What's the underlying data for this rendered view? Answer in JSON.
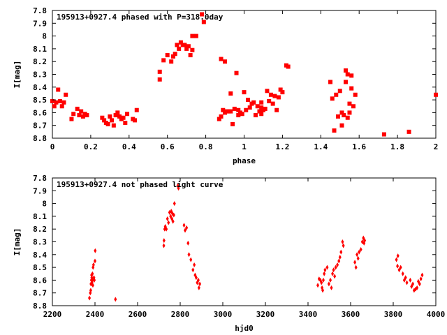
{
  "colors": {
    "points": "#ff0000",
    "axes": "#000000",
    "background": "#ffffff"
  },
  "chart_data": [
    {
      "type": "scatter",
      "title": "195913+0927.4 phased with P=318.0day",
      "xlabel": "phase",
      "ylabel": "I[mag]",
      "xlim": [
        0,
        2
      ],
      "ylim": [
        7.8,
        8.8
      ],
      "y_inverted": true,
      "grid": false,
      "marker": "filled-square",
      "x_ticks": [
        "0",
        "0.2",
        "0.4",
        "0.6",
        "0.8",
        "1",
        "1.2",
        "1.4",
        "1.6",
        "1.8",
        "2"
      ],
      "y_ticks": [
        "7.8",
        "7.9",
        "8",
        "8.1",
        "8.2",
        "8.3",
        "8.4",
        "8.5",
        "8.6",
        "8.7",
        "8.8"
      ],
      "points": [
        [
          0.0,
          8.51
        ],
        [
          0.01,
          8.55
        ],
        [
          0.02,
          8.52
        ],
        [
          0.03,
          8.42
        ],
        [
          0.04,
          8.51
        ],
        [
          0.05,
          8.55
        ],
        [
          0.06,
          8.52
        ],
        [
          0.07,
          8.46
        ],
        [
          0.1,
          8.65
        ],
        [
          0.11,
          8.61
        ],
        [
          0.13,
          8.57
        ],
        [
          0.14,
          8.62
        ],
        [
          0.15,
          8.59
        ],
        [
          0.16,
          8.63
        ],
        [
          0.17,
          8.61
        ],
        [
          0.18,
          8.62
        ],
        [
          0.26,
          8.64
        ],
        [
          0.27,
          8.66
        ],
        [
          0.28,
          8.68
        ],
        [
          0.29,
          8.69
        ],
        [
          0.3,
          8.63
        ],
        [
          0.31,
          8.66
        ],
        [
          0.32,
          8.7
        ],
        [
          0.33,
          8.62
        ],
        [
          0.34,
          8.6
        ],
        [
          0.35,
          8.63
        ],
        [
          0.36,
          8.65
        ],
        [
          0.37,
          8.64
        ],
        [
          0.38,
          8.68
        ],
        [
          0.39,
          8.61
        ],
        [
          0.42,
          8.65
        ],
        [
          0.43,
          8.66
        ],
        [
          0.44,
          8.58
        ],
        [
          0.56,
          8.28
        ],
        [
          0.56,
          8.34
        ],
        [
          0.58,
          8.19
        ],
        [
          0.6,
          8.15
        ],
        [
          0.62,
          8.2
        ],
        [
          0.63,
          8.16
        ],
        [
          0.64,
          8.14
        ],
        [
          0.65,
          8.07
        ],
        [
          0.66,
          8.1
        ],
        [
          0.67,
          8.05
        ],
        [
          0.68,
          8.07
        ],
        [
          0.69,
          8.07
        ],
        [
          0.7,
          8.1
        ],
        [
          0.71,
          8.08
        ],
        [
          0.72,
          8.15
        ],
        [
          0.73,
          8.11
        ],
        [
          0.73,
          8.0
        ],
        [
          0.75,
          8.0
        ],
        [
          0.78,
          7.83
        ],
        [
          0.79,
          7.89
        ],
        [
          0.87,
          8.65
        ],
        [
          0.88,
          8.18
        ],
        [
          0.88,
          8.63
        ],
        [
          0.89,
          8.58
        ],
        [
          0.9,
          8.2
        ],
        [
          0.9,
          8.6
        ],
        [
          0.91,
          8.59
        ],
        [
          0.92,
          8.59
        ],
        [
          0.93,
          8.59
        ],
        [
          0.93,
          8.45
        ],
        [
          0.94,
          8.69
        ],
        [
          0.95,
          8.57
        ],
        [
          0.96,
          8.29
        ],
        [
          0.97,
          8.58
        ],
        [
          0.97,
          8.62
        ],
        [
          0.98,
          8.6
        ],
        [
          0.99,
          8.61
        ],
        [
          1.0,
          8.44
        ],
        [
          1.01,
          8.58
        ],
        [
          1.02,
          8.5
        ],
        [
          1.03,
          8.56
        ],
        [
          1.04,
          8.53
        ],
        [
          1.05,
          8.52
        ],
        [
          1.06,
          8.62
        ],
        [
          1.07,
          8.55
        ],
        [
          1.08,
          8.59
        ],
        [
          1.09,
          8.56
        ],
        [
          1.09,
          8.52
        ],
        [
          1.09,
          8.61
        ],
        [
          1.1,
          8.58
        ],
        [
          1.11,
          8.57
        ],
        [
          1.12,
          8.43
        ],
        [
          1.13,
          8.51
        ],
        [
          1.14,
          8.46
        ],
        [
          1.15,
          8.53
        ],
        [
          1.16,
          8.47
        ],
        [
          1.17,
          8.58
        ],
        [
          1.18,
          8.48
        ],
        [
          1.19,
          8.42
        ],
        [
          1.2,
          8.44
        ],
        [
          1.22,
          8.23
        ],
        [
          1.23,
          8.24
        ],
        [
          1.45,
          8.36
        ],
        [
          1.46,
          8.49
        ],
        [
          1.47,
          8.74
        ],
        [
          1.48,
          8.46
        ],
        [
          1.49,
          8.63
        ],
        [
          1.5,
          8.43
        ],
        [
          1.51,
          8.6
        ],
        [
          1.51,
          8.7
        ],
        [
          1.52,
          8.62
        ],
        [
          1.53,
          8.36
        ],
        [
          1.53,
          8.27
        ],
        [
          1.54,
          8.64
        ],
        [
          1.54,
          8.3
        ],
        [
          1.55,
          8.6
        ],
        [
          1.55,
          8.53
        ],
        [
          1.56,
          8.31
        ],
        [
          1.56,
          8.41
        ],
        [
          1.57,
          8.55
        ],
        [
          1.58,
          8.46
        ],
        [
          1.73,
          8.77
        ],
        [
          1.86,
          8.75
        ],
        [
          2.0,
          8.46
        ]
      ]
    },
    {
      "type": "scatter",
      "title": "195913+0927.4 not phased light curve",
      "xlabel": "hjd0",
      "ylabel": "I[mag]",
      "xlim": [
        2200,
        4000
      ],
      "ylim": [
        7.8,
        8.8
      ],
      "y_inverted": true,
      "grid": false,
      "marker": "small-diamond",
      "x_ticks": [
        "2200",
        "2400",
        "2600",
        "2800",
        "3000",
        "3200",
        "3400",
        "3600",
        "3800",
        "4000"
      ],
      "y_ticks": [
        "7.8",
        "7.9",
        "8",
        "8.1",
        "8.2",
        "8.3",
        "8.4",
        "8.5",
        "8.6",
        "8.7",
        "8.8"
      ],
      "points": [
        [
          2374,
          8.74
        ],
        [
          2378,
          8.7
        ],
        [
          2380,
          8.68
        ],
        [
          2381,
          8.63
        ],
        [
          2383,
          8.6
        ],
        [
          2384,
          8.56
        ],
        [
          2385,
          8.58
        ],
        [
          2386,
          8.62
        ],
        [
          2388,
          8.55
        ],
        [
          2389,
          8.6
        ],
        [
          2390,
          8.64
        ],
        [
          2391,
          8.5
        ],
        [
          2393,
          8.48
        ],
        [
          2395,
          8.58
        ],
        [
          2397,
          8.6
        ],
        [
          2400,
          8.45
        ],
        [
          2401,
          8.37
        ],
        [
          2496,
          8.75
        ],
        [
          2723,
          8.33
        ],
        [
          2724,
          8.29
        ],
        [
          2727,
          8.2
        ],
        [
          2730,
          8.18
        ],
        [
          2735,
          8.2
        ],
        [
          2740,
          8.12
        ],
        [
          2745,
          8.15
        ],
        [
          2750,
          8.07
        ],
        [
          2755,
          8.1
        ],
        [
          2758,
          8.06
        ],
        [
          2761,
          8.12
        ],
        [
          2764,
          8.08
        ],
        [
          2766,
          8.14
        ],
        [
          2770,
          8.09
        ],
        [
          2773,
          8.0
        ],
        [
          2789,
          7.86
        ],
        [
          2792,
          7.88
        ],
        [
          2818,
          8.17
        ],
        [
          2823,
          8.21
        ],
        [
          2830,
          8.19
        ],
        [
          2837,
          8.31
        ],
        [
          2841,
          8.4
        ],
        [
          2850,
          8.44
        ],
        [
          2860,
          8.52
        ],
        [
          2866,
          8.48
        ],
        [
          2870,
          8.56
        ],
        [
          2875,
          8.58
        ],
        [
          2880,
          8.62
        ],
        [
          2885,
          8.6
        ],
        [
          2888,
          8.66
        ],
        [
          2892,
          8.63
        ],
        [
          3446,
          8.64
        ],
        [
          3452,
          8.59
        ],
        [
          3458,
          8.6
        ],
        [
          3463,
          8.62
        ],
        [
          3466,
          8.66
        ],
        [
          3469,
          8.68
        ],
        [
          3472,
          8.6
        ],
        [
          3476,
          8.55
        ],
        [
          3480,
          8.52
        ],
        [
          3490,
          8.5
        ],
        [
          3498,
          8.63
        ],
        [
          3505,
          8.6
        ],
        [
          3510,
          8.66
        ],
        [
          3515,
          8.55
        ],
        [
          3520,
          8.52
        ],
        [
          3525,
          8.57
        ],
        [
          3530,
          8.5
        ],
        [
          3538,
          8.48
        ],
        [
          3545,
          8.45
        ],
        [
          3550,
          8.42
        ],
        [
          3555,
          8.38
        ],
        [
          3562,
          8.3
        ],
        [
          3566,
          8.33
        ],
        [
          3620,
          8.46
        ],
        [
          3625,
          8.5
        ],
        [
          3630,
          8.4
        ],
        [
          3635,
          8.43
        ],
        [
          3640,
          8.38
        ],
        [
          3648,
          8.36
        ],
        [
          3655,
          8.3
        ],
        [
          3660,
          8.27
        ],
        [
          3663,
          8.31
        ],
        [
          3666,
          8.29
        ],
        [
          3815,
          8.44
        ],
        [
          3820,
          8.49
        ],
        [
          3822,
          8.41
        ],
        [
          3828,
          8.52
        ],
        [
          3835,
          8.5
        ],
        [
          3845,
          8.55
        ],
        [
          3852,
          8.6
        ],
        [
          3858,
          8.58
        ],
        [
          3864,
          8.62
        ],
        [
          3880,
          8.6
        ],
        [
          3886,
          8.65
        ],
        [
          3892,
          8.63
        ],
        [
          3898,
          8.68
        ],
        [
          3905,
          8.67
        ],
        [
          3912,
          8.66
        ],
        [
          3918,
          8.61
        ],
        [
          3924,
          8.63
        ],
        [
          3930,
          8.59
        ],
        [
          3936,
          8.56
        ]
      ]
    }
  ]
}
